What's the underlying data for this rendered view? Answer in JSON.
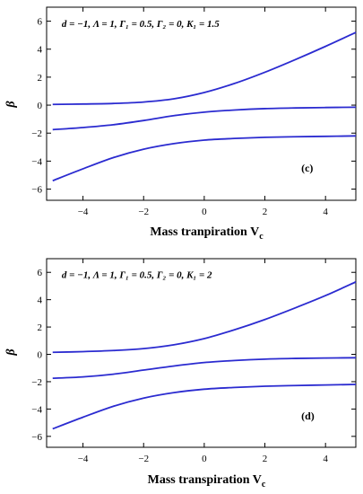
{
  "chart_data": [
    {
      "type": "line",
      "panel_label": "(c)",
      "annotation": "d = −1, Λ = 1, Γ₁ = 0.5,  Γ₂ = 0, K₁ = 1.5",
      "xlabel": "Mass tranpiration V",
      "xlabel_sub": "c",
      "ylabel": "β",
      "xlim": [
        -5.2,
        5
      ],
      "ylim": [
        -6.8,
        7
      ],
      "xticks": [
        -4,
        -2,
        0,
        2,
        4
      ],
      "yticks": [
        -6,
        -4,
        -2,
        0,
        2,
        4,
        6
      ],
      "grid": false,
      "line_color": "#2b2bd0",
      "series": [
        {
          "x": [
            -5,
            -4,
            -3,
            -2,
            -1,
            0,
            1,
            2,
            3,
            4,
            5
          ],
          "y": [
            0.05,
            0.08,
            0.12,
            0.22,
            0.45,
            0.9,
            1.55,
            2.35,
            3.25,
            4.2,
            5.2
          ]
        },
        {
          "x": [
            -5,
            -4,
            -3,
            -2,
            -1,
            0,
            1,
            2,
            3,
            4,
            5
          ],
          "y": [
            -1.75,
            -1.6,
            -1.4,
            -1.1,
            -0.75,
            -0.5,
            -0.35,
            -0.25,
            -0.2,
            -0.17,
            -0.15
          ]
        },
        {
          "x": [
            -5,
            -4,
            -3,
            -2,
            -1,
            0,
            1,
            2,
            3,
            4,
            5
          ],
          "y": [
            -5.4,
            -4.55,
            -3.75,
            -3.15,
            -2.75,
            -2.5,
            -2.38,
            -2.3,
            -2.26,
            -2.23,
            -2.2
          ]
        }
      ]
    },
    {
      "type": "line",
      "panel_label": "(d)",
      "annotation": "d = −1, Λ = 1, Γ₁ = 0.5,  Γ₂ = 0, K₁ = 2",
      "xlabel": "Mass transpiration V",
      "xlabel_sub": "c",
      "ylabel": "β",
      "xlim": [
        -5.2,
        5
      ],
      "ylim": [
        -6.8,
        7
      ],
      "xticks": [
        -4,
        -2,
        0,
        2,
        4
      ],
      "yticks": [
        -6,
        -4,
        -2,
        0,
        2,
        4,
        6
      ],
      "grid": false,
      "line_color": "#2b2bd0",
      "series": [
        {
          "x": [
            -5,
            -4,
            -3,
            -2,
            -1,
            0,
            1,
            2,
            3,
            4,
            5
          ],
          "y": [
            0.15,
            0.2,
            0.28,
            0.42,
            0.7,
            1.15,
            1.8,
            2.55,
            3.4,
            4.3,
            5.3
          ]
        },
        {
          "x": [
            -5,
            -4,
            -3,
            -2,
            -1,
            0,
            1,
            2,
            3,
            4,
            5
          ],
          "y": [
            -1.75,
            -1.65,
            -1.45,
            -1.15,
            -0.85,
            -0.6,
            -0.45,
            -0.35,
            -0.3,
            -0.27,
            -0.25
          ]
        },
        {
          "x": [
            -5,
            -4,
            -3,
            -2,
            -1,
            0,
            1,
            2,
            3,
            4,
            5
          ],
          "y": [
            -5.45,
            -4.6,
            -3.8,
            -3.2,
            -2.8,
            -2.55,
            -2.42,
            -2.33,
            -2.28,
            -2.24,
            -2.2
          ]
        }
      ]
    }
  ]
}
